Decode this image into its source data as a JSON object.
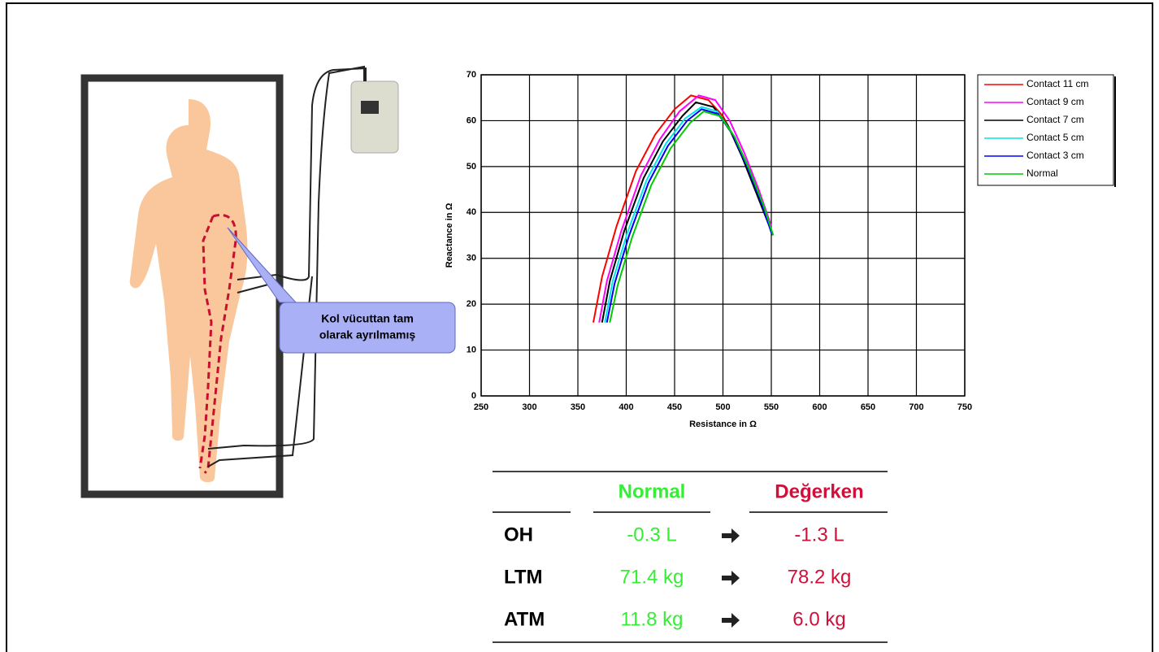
{
  "chart_data": {
    "type": "line",
    "xlabel": "Resistance in Ω",
    "ylabel": "Reactance in Ω",
    "xlim": [
      250,
      750
    ],
    "xticks": [
      250,
      300,
      350,
      400,
      450,
      500,
      550,
      600,
      650,
      700,
      750
    ],
    "ylim": [
      0,
      70
    ],
    "yticks": [
      0,
      10,
      20,
      30,
      40,
      50,
      60,
      70
    ],
    "grid": true,
    "legend": "right",
    "series": [
      {
        "name": "Contact 11 cm",
        "color": "#ff0000",
        "x": [
          366,
          375,
          390,
          410,
          430,
          450,
          467,
          485,
          500,
          515,
          530,
          545
        ],
        "values": [
          16,
          26,
          37,
          49,
          57,
          62.5,
          65.5,
          64.5,
          61,
          55,
          47,
          39
        ]
      },
      {
        "name": "Contact 9 cm",
        "color": "#ff00ff",
        "x": [
          372,
          380,
          395,
          415,
          435,
          455,
          475,
          492,
          507,
          522,
          537,
          550
        ],
        "values": [
          16,
          25,
          36,
          48,
          56,
          62,
          65.5,
          64.5,
          60,
          53,
          45,
          37
        ]
      },
      {
        "name": "Contact 7 cm",
        "color": "#000000",
        "x": [
          375,
          383,
          398,
          418,
          438,
          458,
          472,
          490,
          505,
          520,
          535,
          548
        ],
        "values": [
          16,
          25,
          36,
          47.5,
          55.5,
          61,
          64,
          63,
          59,
          52,
          44,
          37
        ]
      },
      {
        "name": "Contact 5 cm",
        "color": "#00e5e5",
        "x": [
          378,
          386,
          401,
          421,
          441,
          461,
          478,
          494,
          509,
          524,
          539,
          550
        ],
        "values": [
          16,
          25,
          35.5,
          47,
          55,
          60.5,
          63,
          62,
          57.5,
          51,
          43,
          36
        ]
      },
      {
        "name": "Contact 3 cm",
        "color": "#0000ff",
        "x": [
          380,
          388,
          403,
          423,
          443,
          463,
          478,
          495,
          510,
          525,
          540,
          551
        ],
        "values": [
          16,
          24.5,
          35,
          46.5,
          54.5,
          60,
          62.5,
          61.5,
          57,
          50,
          42,
          35
        ]
      },
      {
        "name": "Normal",
        "color": "#00cc00",
        "x": [
          383,
          391,
          406,
          426,
          446,
          466,
          480,
          497,
          512,
          527,
          542,
          552
        ],
        "values": [
          16,
          24,
          34.5,
          46,
          54,
          59.5,
          62,
          61,
          56.5,
          49.5,
          41.5,
          35
        ]
      }
    ]
  },
  "callout": {
    "lines": [
      "Kol vücuttan tam",
      "olarak ayrılmamış"
    ]
  },
  "table": {
    "header": {
      "normal": "Normal",
      "altered": "Değerken"
    },
    "rows": [
      {
        "label": "OH",
        "normal": "-0.3 L",
        "altered": "-1.3 L"
      },
      {
        "label": "LTM",
        "normal": "71.4 kg",
        "altered": "78.2 kg"
      },
      {
        "label": "ATM",
        "normal": "11.8 kg",
        "altered": "6.0 kg"
      }
    ]
  }
}
